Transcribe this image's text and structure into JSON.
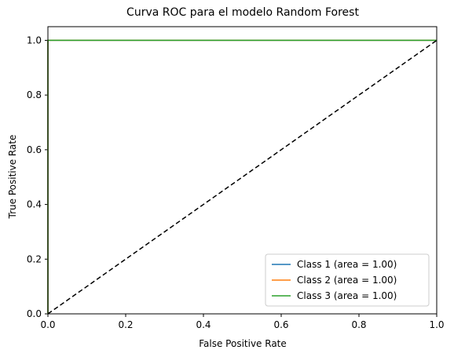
{
  "chart_data": {
    "type": "line",
    "title": "Curva ROC para el modelo Random Forest",
    "xlabel": "False Positive Rate",
    "ylabel": "True Positive Rate",
    "xlim": [
      0.0,
      1.0
    ],
    "ylim": [
      0.0,
      1.05
    ],
    "xticks": [
      "0.0",
      "0.2",
      "0.4",
      "0.6",
      "0.8",
      "1.0"
    ],
    "yticks": [
      "0.0",
      "0.2",
      "0.4",
      "0.6",
      "0.8",
      "1.0"
    ],
    "grid": false,
    "legend_position": "lower-right",
    "series": [
      {
        "name": "Class 1 (area = 1.00)",
        "color": "#1f77b4",
        "x": [
          0.0,
          0.0,
          1.0
        ],
        "y": [
          0.0,
          1.0,
          1.0
        ]
      },
      {
        "name": "Class 2 (area = 1.00)",
        "color": "#ff7f0e",
        "x": [
          0.0,
          0.0,
          1.0
        ],
        "y": [
          0.0,
          1.0,
          1.0
        ]
      },
      {
        "name": "Class 3 (area = 1.00)",
        "color": "#2ca02c",
        "x": [
          0.0,
          0.0,
          1.0
        ],
        "y": [
          0.0,
          1.0,
          1.0
        ]
      }
    ],
    "reference_line": {
      "color": "#000000",
      "style": "dashed",
      "x": [
        0.0,
        1.0
      ],
      "y": [
        0.0,
        1.0
      ]
    }
  }
}
